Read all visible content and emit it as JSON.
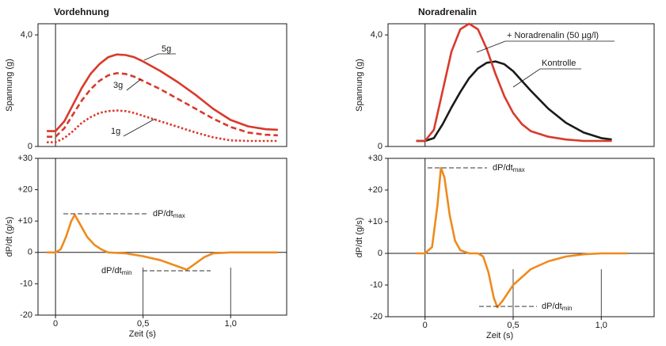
{
  "chart_data": [
    {
      "type": "line",
      "title": "Vordehnung",
      "ylabel": "Spannung (g)",
      "xlim": [
        -0.1,
        1.32
      ],
      "ylim": [
        0,
        4.4
      ],
      "yticks": [
        0,
        {
          "value": 4,
          "label": "4,0"
        }
      ],
      "x": [
        -0.05,
        0,
        0.05,
        0.1,
        0.15,
        0.2,
        0.25,
        0.3,
        0.35,
        0.4,
        0.45,
        0.5,
        0.6,
        0.7,
        0.8,
        0.9,
        1.0,
        1.1,
        1.2,
        1.27
      ],
      "series": [
        {
          "name": "5g",
          "color": "#d93a2b",
          "linestyle": "solid",
          "values": [
            0.55,
            0.55,
            0.9,
            1.5,
            2.1,
            2.6,
            2.95,
            3.2,
            3.3,
            3.28,
            3.2,
            3.05,
            2.7,
            2.3,
            1.85,
            1.35,
            0.95,
            0.72,
            0.62,
            0.6
          ]
        },
        {
          "name": "3g",
          "color": "#d93a2b",
          "linestyle": "dashed",
          "values": [
            0.35,
            0.35,
            0.65,
            1.15,
            1.65,
            2.05,
            2.35,
            2.55,
            2.63,
            2.6,
            2.5,
            2.35,
            2.05,
            1.7,
            1.35,
            1.0,
            0.7,
            0.5,
            0.42,
            0.4
          ]
        },
        {
          "name": "1g",
          "color": "#d93a2b",
          "linestyle": "dotted",
          "values": [
            0.15,
            0.15,
            0.3,
            0.55,
            0.85,
            1.05,
            1.2,
            1.27,
            1.29,
            1.27,
            1.2,
            1.1,
            0.9,
            0.7,
            0.5,
            0.33,
            0.22,
            0.2,
            0.2,
            0.2
          ]
        }
      ]
    },
    {
      "type": "line",
      "ylabel": "dP/dt (g/s)",
      "xlabel": "Zeit (s)",
      "xlim": [
        -0.1,
        1.32
      ],
      "ylim": [
        -20,
        30
      ],
      "yticks": [
        {
          "value": 30,
          "label": "+30"
        },
        {
          "value": 20,
          "label": "+20"
        },
        {
          "value": 10,
          "label": "+10"
        },
        0,
        -10,
        -20
      ],
      "xticks": [
        0,
        {
          "value": 0.5,
          "label": "0,5"
        },
        {
          "value": 1,
          "label": "1,0"
        }
      ],
      "x": [
        -0.05,
        0,
        0.03,
        0.06,
        0.09,
        0.11,
        0.14,
        0.18,
        0.22,
        0.26,
        0.3,
        0.4,
        0.5,
        0.6,
        0.7,
        0.75,
        0.8,
        0.85,
        0.9,
        1.0,
        1.1,
        1.27
      ],
      "series": [
        {
          "color": "#ef8a1e",
          "linestyle": "solid",
          "values": [
            0,
            0,
            1,
            5,
            10,
            12,
            9,
            5,
            2.5,
            1,
            0,
            -0.3,
            -1.2,
            -2.5,
            -4.5,
            -5.5,
            -3.5,
            -1.5,
            -0.3,
            0,
            0,
            0
          ]
        }
      ],
      "annotations": [
        {
          "text": "dP/dt",
          "sub": "max"
        },
        {
          "text": "dP/dt",
          "sub": "min"
        }
      ]
    },
    {
      "type": "line",
      "title": "Noradrenalin",
      "ylabel": "Spannung (g)",
      "xlim": [
        -0.21,
        1.3
      ],
      "ylim": [
        0,
        4.4
      ],
      "yticks": [
        0,
        {
          "value": 4,
          "label": "4,0"
        }
      ],
      "x": [
        -0.05,
        0,
        0.05,
        0.1,
        0.15,
        0.2,
        0.25,
        0.3,
        0.35,
        0.4,
        0.45,
        0.5,
        0.55,
        0.6,
        0.7,
        0.8,
        0.9,
        1.0,
        1.06
      ],
      "series": [
        {
          "name": "Kontrolle",
          "color": "#1a1a1a",
          "linestyle": "solid",
          "values": [
            0.2,
            0.2,
            0.3,
            0.8,
            1.4,
            1.95,
            2.45,
            2.8,
            3.0,
            3.05,
            2.95,
            2.7,
            2.35,
            2.0,
            1.35,
            0.85,
            0.5,
            0.3,
            0.25
          ]
        },
        {
          "name": "+ Noradrenalin (50 µg/l)",
          "color": "#d93a2b",
          "linestyle": "solid",
          "values": [
            0.2,
            0.2,
            0.6,
            2.0,
            3.4,
            4.2,
            4.4,
            4.2,
            3.5,
            2.6,
            1.8,
            1.2,
            0.8,
            0.55,
            0.35,
            0.25,
            0.2,
            0.2,
            0.2
          ]
        }
      ]
    },
    {
      "type": "line",
      "ylabel": "dP/dt (g/s)",
      "xlabel": "Zeit (s)",
      "xlim": [
        -0.21,
        1.3
      ],
      "ylim": [
        -20,
        30
      ],
      "yticks": [
        {
          "value": 30,
          "label": "+30"
        },
        {
          "value": 20,
          "label": "+20"
        },
        {
          "value": 10,
          "label": "+10"
        },
        0,
        -10,
        -20
      ],
      "xticks": [
        0,
        {
          "value": 0.5,
          "label": "0,5"
        },
        {
          "value": 1,
          "label": "1,0"
        }
      ],
      "x": [
        -0.05,
        0,
        0.04,
        0.07,
        0.09,
        0.11,
        0.14,
        0.17,
        0.2,
        0.25,
        0.3,
        0.33,
        0.36,
        0.39,
        0.41,
        0.44,
        0.5,
        0.6,
        0.7,
        0.8,
        0.9,
        1.0,
        1.15
      ],
      "series": [
        {
          "color": "#ef8a1e",
          "linestyle": "solid",
          "values": [
            0,
            0,
            2,
            15,
            27,
            24,
            12,
            4,
            1,
            0,
            0,
            -1,
            -6,
            -14,
            -17,
            -15,
            -10,
            -5,
            -2.5,
            -1,
            -0.3,
            0,
            0
          ]
        }
      ],
      "annotations": [
        {
          "text": "dP/dt",
          "sub": "max"
        },
        {
          "text": "dP/dt",
          "sub": "min"
        }
      ]
    }
  ]
}
